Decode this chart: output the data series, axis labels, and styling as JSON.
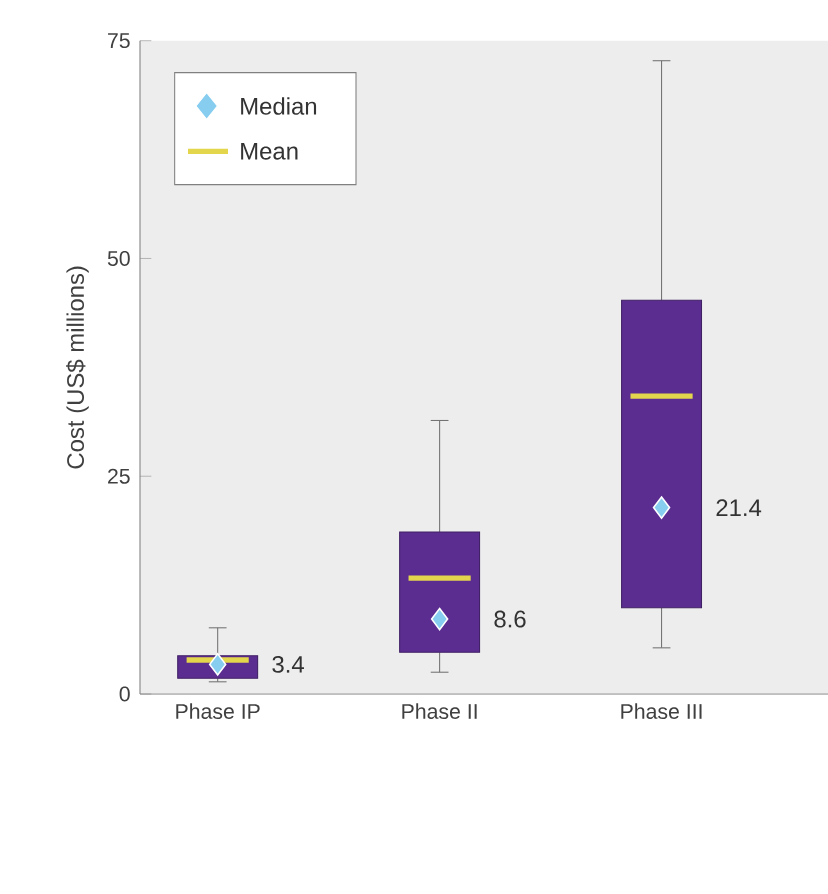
{
  "chart_data": {
    "type": "box",
    "ylabel": "Cost (US$ millions)",
    "categories": [
      "Phase IP",
      "Phase II",
      "Phase III"
    ],
    "ylim": [
      0,
      75
    ],
    "yticks": [
      0,
      25,
      50,
      75
    ],
    "color": "#5b2d91",
    "annotations": [
      "Median",
      "Mean",
      {
        "text": "3.4",
        "x": "Phase IP",
        "y": 3.4
      },
      {
        "text": "8.6",
        "x": "Phase II",
        "y": 8.6
      },
      {
        "text": "21.4",
        "x": "Phase III",
        "y": 21.4
      }
    ],
    "boxes": [
      {
        "low": 1.4,
        "q1": 1.8,
        "median": 3.4,
        "q3": 4.4,
        "high": 7.6,
        "mean": 3.9
      },
      {
        "low": 2.5,
        "q1": 4.8,
        "median": 8.6,
        "q3": 18.6,
        "high": 31.4,
        "mean": 13.3
      },
      {
        "low": 5.3,
        "q1": 9.9,
        "median": 21.4,
        "q3": 45.2,
        "high": 72.7,
        "mean": 34.2
      }
    ]
  }
}
